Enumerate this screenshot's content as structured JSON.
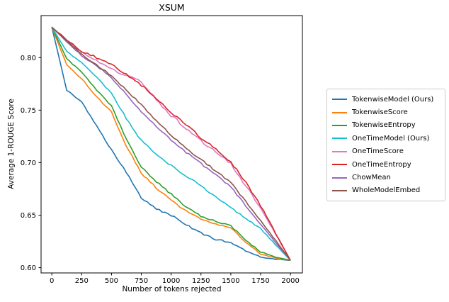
{
  "chart_data": {
    "type": "line",
    "title": "XSUM",
    "xlabel": "Number of tokens rejected",
    "ylabel": "Average 1-ROUGE Score",
    "xlim": [
      -90,
      2100
    ],
    "ylim": [
      0.595,
      0.84
    ],
    "grid": false,
    "legend_position": "outside right",
    "x_ticks": [
      0,
      250,
      500,
      750,
      1000,
      1250,
      1500,
      1750,
      2000
    ],
    "y_ticks": [
      0.6,
      0.65,
      0.7,
      0.75,
      0.8
    ],
    "x": [
      0,
      125,
      250,
      375,
      500,
      625,
      750,
      875,
      1000,
      1125,
      1250,
      1375,
      1500,
      1625,
      1750,
      1875,
      2000
    ],
    "series": [
      {
        "name": "TokenwiseModel (Ours)",
        "color": "#1f77b4",
        "values": [
          0.829,
          0.769,
          0.758,
          0.735,
          0.712,
          0.691,
          0.666,
          0.656,
          0.65,
          0.641,
          0.633,
          0.627,
          0.624,
          0.616,
          0.61,
          0.608,
          0.607
        ]
      },
      {
        "name": "TokenwiseScore",
        "color": "#ff7f0e",
        "values": [
          0.829,
          0.793,
          0.78,
          0.763,
          0.748,
          0.716,
          0.69,
          0.676,
          0.664,
          0.654,
          0.646,
          0.641,
          0.638,
          0.624,
          0.613,
          0.609,
          0.607
        ]
      },
      {
        "name": "TokenwiseEntropy",
        "color": "#2ca02c",
        "values": [
          0.829,
          0.799,
          0.786,
          0.769,
          0.754,
          0.722,
          0.696,
          0.682,
          0.67,
          0.658,
          0.649,
          0.644,
          0.64,
          0.626,
          0.615,
          0.61,
          0.607
        ]
      },
      {
        "name": "OneTimeModel (Ours)",
        "color": "#17becf",
        "values": [
          0.829,
          0.806,
          0.795,
          0.781,
          0.766,
          0.742,
          0.721,
          0.708,
          0.697,
          0.687,
          0.678,
          0.667,
          0.657,
          0.647,
          0.637,
          0.622,
          0.607
        ]
      },
      {
        "name": "OneTimeScore",
        "color": "#e377c2",
        "values": [
          0.829,
          0.816,
          0.805,
          0.797,
          0.789,
          0.783,
          0.777,
          0.76,
          0.745,
          0.733,
          0.721,
          0.71,
          0.699,
          0.678,
          0.657,
          0.632,
          0.607
        ]
      },
      {
        "name": "OneTimeEntropy",
        "color": "#d62728",
        "values": [
          0.829,
          0.817,
          0.806,
          0.8,
          0.793,
          0.784,
          0.774,
          0.761,
          0.748,
          0.736,
          0.724,
          0.713,
          0.701,
          0.681,
          0.659,
          0.633,
          0.607
        ]
      },
      {
        "name": "ChowMean",
        "color": "#9467bd",
        "values": [
          0.829,
          0.815,
          0.802,
          0.792,
          0.781,
          0.765,
          0.749,
          0.735,
          0.721,
          0.71,
          0.699,
          0.688,
          0.677,
          0.659,
          0.641,
          0.624,
          0.607
        ]
      },
      {
        "name": "WholeModelEmbed",
        "color": "#8c564b",
        "values": [
          0.829,
          0.816,
          0.803,
          0.793,
          0.783,
          0.769,
          0.755,
          0.74,
          0.726,
          0.714,
          0.703,
          0.692,
          0.681,
          0.663,
          0.645,
          0.626,
          0.607
        ]
      }
    ],
    "axis_color": "#000000",
    "noise_amplitudes": [
      0.0008,
      0.0008,
      0.0008,
      0.0009,
      0.0013,
      0.0013,
      0.0009,
      0.0008
    ]
  }
}
